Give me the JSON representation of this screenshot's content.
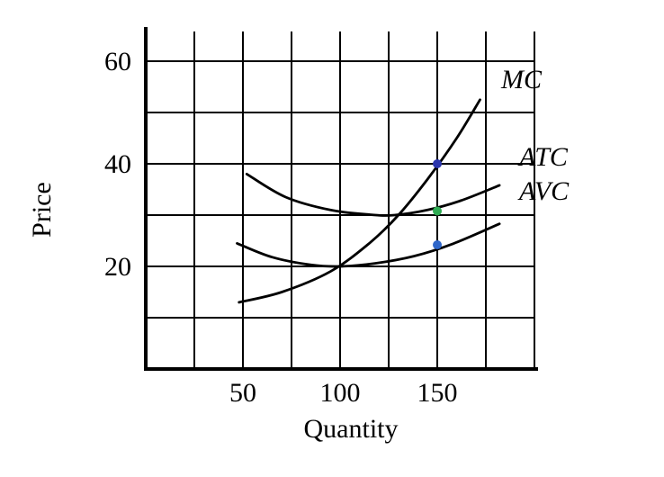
{
  "chart_data": {
    "type": "line",
    "xlabel": "Quantity",
    "ylabel": "Price",
    "xlim": [
      0,
      200
    ],
    "ylim": [
      0,
      66
    ],
    "grid": true,
    "x_tick_step": 25,
    "y_tick_step": 10,
    "x_ticks": [
      {
        "value": 50,
        "label": "50"
      },
      {
        "value": 100,
        "label": "100"
      },
      {
        "value": 150,
        "label": "150"
      }
    ],
    "y_ticks": [
      {
        "value": 20,
        "label": "20"
      },
      {
        "value": 40,
        "label": "40"
      },
      {
        "value": 60,
        "label": "60"
      }
    ],
    "series": [
      {
        "name": "MC",
        "label": "MC",
        "color": "#000000",
        "points": [
          [
            48,
            13
          ],
          [
            70,
            15
          ],
          [
            95,
            19
          ],
          [
            115,
            24.5
          ],
          [
            130,
            30
          ],
          [
            145,
            37
          ],
          [
            160,
            45
          ],
          [
            172,
            52.5
          ]
        ]
      },
      {
        "name": "ATC",
        "label": "ATC",
        "color": "#000000",
        "points": [
          [
            52,
            38
          ],
          [
            72,
            33.5
          ],
          [
            95,
            31
          ],
          [
            115,
            30.1
          ],
          [
            128,
            30
          ],
          [
            145,
            31
          ],
          [
            162,
            32.8
          ],
          [
            182,
            35.8
          ]
        ]
      },
      {
        "name": "AVC",
        "label": "AVC",
        "color": "#000000",
        "points": [
          [
            47,
            24.5
          ],
          [
            65,
            21.8
          ],
          [
            85,
            20.3
          ],
          [
            100,
            20
          ],
          [
            118,
            20.6
          ],
          [
            138,
            22
          ],
          [
            158,
            24.4
          ],
          [
            182,
            28.3
          ]
        ]
      }
    ],
    "markers": [
      {
        "series": "MC",
        "x": 150,
        "y": 40,
        "color": "#2b35ad"
      },
      {
        "series": "ATC",
        "x": 150,
        "y": 30.8,
        "color": "#2fab53"
      },
      {
        "series": "AVC",
        "x": 150,
        "y": 24.2,
        "color": "#2e66c9"
      }
    ],
    "colors": {
      "curve": "#000000",
      "grid": "#000000",
      "axis": "#000000",
      "background": "#ffffff"
    }
  }
}
